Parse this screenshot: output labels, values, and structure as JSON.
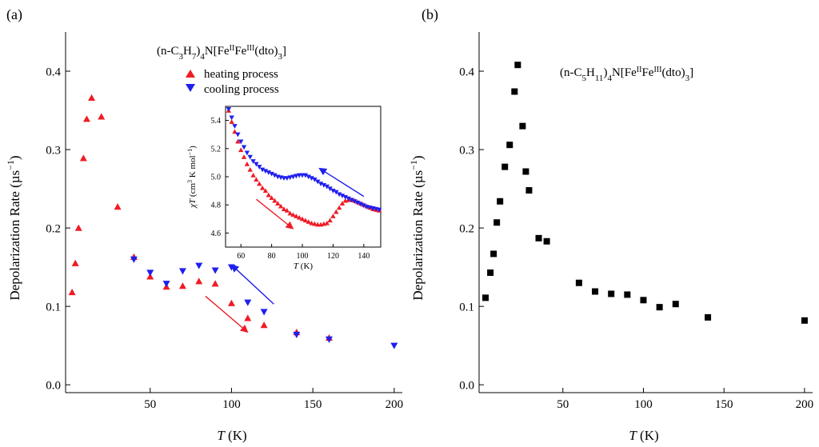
{
  "chart_data": [
    {
      "type": "scatter",
      "panel_label": "(a)",
      "title": "(n-C3H7)4N[FeIIFeIII(dto)3]",
      "title_parts": {
        "prefix": "(n-C",
        "sub1": "3",
        "mid1": "H",
        "sub2": "7",
        "mid2": ")",
        "sub3": "4",
        "mid3": "N[Fe",
        "sup1": "II",
        "mid4": "Fe",
        "sup2": "III",
        "mid5": "(dto)",
        "sub4": "3",
        "suffix": "]"
      },
      "xlabel": {
        "italic": "T",
        "rest": " (K)"
      },
      "ylabel": {
        "text": "Depolarization Rate (µs",
        "sup": "−1",
        "close": ")"
      },
      "xlim": [
        -2,
        205
      ],
      "ylim": [
        -0.01,
        0.45
      ],
      "xticks": [
        50,
        100,
        150,
        200
      ],
      "xtick_labels": [
        "50",
        "100",
        "150",
        "200"
      ],
      "yticks": [
        0.0,
        0.1,
        0.2,
        0.3,
        0.4
      ],
      "ytick_labels": [
        "0.0",
        "0.1",
        "0.2",
        "0.3",
        "0.4"
      ],
      "legend": [
        {
          "label": "heating process",
          "marker": "triangle-up",
          "color": "#ee1c24"
        },
        {
          "label": "cooling process",
          "marker": "triangle-down",
          "color": "#1f1fee"
        }
      ],
      "series": [
        {
          "name": "heating process",
          "marker": "triangle-up",
          "color": "#ee1c24",
          "x": [
            2,
            4,
            6,
            9,
            11,
            14,
            20,
            30,
            40,
            50,
            60,
            70,
            80,
            90,
            100,
            110,
            120,
            140,
            160
          ],
          "y": [
            0.118,
            0.155,
            0.2,
            0.289,
            0.339,
            0.366,
            0.342,
            0.227,
            0.163,
            0.138,
            0.125,
            0.126,
            0.132,
            0.129,
            0.104,
            0.085,
            0.076,
            0.067,
            0.06
          ]
        },
        {
          "name": "cooling process",
          "marker": "triangle-down",
          "color": "#1f1fee",
          "x": [
            40,
            50,
            60,
            70,
            80,
            90,
            100,
            110,
            120,
            140,
            160,
            200
          ],
          "y": [
            0.16,
            0.143,
            0.129,
            0.145,
            0.152,
            0.146,
            0.15,
            0.105,
            0.093,
            0.064,
            0.058,
            0.05
          ]
        }
      ],
      "annotations": [
        {
          "type": "arrow",
          "color": "#ee1c24",
          "from": [
            84,
            0.113
          ],
          "to": [
            110,
            0.067
          ]
        },
        {
          "type": "arrow",
          "color": "#1f1fee",
          "from": [
            126,
            0.103
          ],
          "to": [
            100,
            0.153
          ]
        }
      ],
      "inset": {
        "type": "scatter",
        "xlabel": {
          "italic": "T",
          "rest": " (K)"
        },
        "ylabel": {
          "italic": "χT",
          "rest": " (cm",
          "sup1": "3",
          "mid": " K mol",
          "sup2": "−1",
          "close": ")"
        },
        "xlim": [
          50,
          151
        ],
        "ylim": [
          4.5,
          5.5
        ],
        "xticks": [
          60,
          80,
          100,
          120,
          140
        ],
        "xtick_labels": [
          "60",
          "80",
          "100",
          "120",
          "140"
        ],
        "yticks": [
          4.6,
          4.8,
          5.0,
          5.2,
          5.4
        ],
        "ytick_labels": [
          "4.6",
          "4.8",
          "5.0",
          "5.2",
          "5.4"
        ],
        "series": [
          {
            "name": "heating",
            "marker": "triangle-up",
            "color": "#ee1c24",
            "x": [
              52,
              54,
              56,
              58,
              60,
              62,
              64,
              66,
              68,
              70,
              72,
              74,
              76,
              78,
              80,
              82,
              84,
              86,
              88,
              90,
              92,
              94,
              96,
              98,
              100,
              102,
              104,
              106,
              108,
              110,
              112,
              114,
              116,
              118,
              120,
              122,
              124,
              126,
              128,
              130,
              132,
              134,
              136,
              138,
              140,
              142,
              144,
              146,
              148,
              150
            ],
            "y": [
              5.47,
              5.39,
              5.32,
              5.25,
              5.19,
              5.14,
              5.09,
              5.05,
              5.01,
              4.98,
              4.95,
              4.92,
              4.9,
              4.87,
              4.85,
              4.83,
              4.81,
              4.79,
              4.77,
              4.76,
              4.74,
              4.73,
              4.72,
              4.71,
              4.7,
              4.69,
              4.68,
              4.67,
              4.665,
              4.66,
              4.66,
              4.665,
              4.67,
              4.69,
              4.72,
              4.75,
              4.78,
              4.81,
              4.83,
              4.835,
              4.835,
              4.83,
              4.82,
              4.81,
              4.8,
              4.79,
              4.78,
              4.77,
              4.765,
              4.76
            ]
          },
          {
            "name": "cooling",
            "marker": "triangle-down",
            "color": "#1f1fee",
            "x": [
              52,
              54,
              56,
              58,
              60,
              62,
              64,
              66,
              68,
              70,
              72,
              74,
              76,
              78,
              80,
              82,
              84,
              86,
              88,
              90,
              92,
              94,
              96,
              98,
              100,
              102,
              104,
              106,
              108,
              110,
              112,
              114,
              116,
              118,
              120,
              122,
              124,
              126,
              128,
              130,
              132,
              134,
              136,
              138,
              140,
              142,
              144,
              146,
              148,
              150
            ],
            "y": [
              5.48,
              5.42,
              5.36,
              5.3,
              5.25,
              5.21,
              5.17,
              5.14,
              5.11,
              5.09,
              5.07,
              5.05,
              5.04,
              5.03,
              5.02,
              5.01,
              5.0,
              4.995,
              4.99,
              4.99,
              4.995,
              5.0,
              5.005,
              5.01,
              5.01,
              5.01,
              5.0,
              4.99,
              4.98,
              4.965,
              4.95,
              4.94,
              4.93,
              4.915,
              4.9,
              4.89,
              4.875,
              4.865,
              4.855,
              4.845,
              4.835,
              4.825,
              4.815,
              4.805,
              4.795,
              4.785,
              4.78,
              4.775,
              4.77,
              4.765
            ]
          }
        ],
        "annotations": [
          {
            "type": "arrow",
            "color": "#ee1c24",
            "from": [
              70,
              4.84
            ],
            "to": [
              94,
              4.63
            ]
          },
          {
            "type": "arrow",
            "color": "#1f1fee",
            "from": [
              140,
              4.86
            ],
            "to": [
              111,
              5.06
            ]
          }
        ]
      }
    },
    {
      "type": "scatter",
      "panel_label": "(b)",
      "title": "(n-C5H11)4N[FeIIFeIII(dto)3]",
      "title_parts": {
        "prefix": "(n-C",
        "sub1": "5",
        "mid1": "H",
        "sub2": "11",
        "mid2": ")",
        "sub3": "4",
        "mid3": "N[Fe",
        "sup1": "II",
        "mid4": "Fe",
        "sup2": "III",
        "mid5": "(dto)",
        "sub4": "3",
        "suffix": "]"
      },
      "xlabel": {
        "italic": "T",
        "rest": " (K)"
      },
      "ylabel": {
        "text": "Depolarization Rate (µs",
        "sup": "−1",
        "close": ")"
      },
      "xlim": [
        -2,
        205
      ],
      "ylim": [
        -0.01,
        0.45
      ],
      "xticks": [
        50,
        100,
        150,
        200
      ],
      "xtick_labels": [
        "50",
        "100",
        "150",
        "200"
      ],
      "yticks": [
        0.0,
        0.1,
        0.2,
        0.3,
        0.4
      ],
      "ytick_labels": [
        "0.0",
        "0.1",
        "0.2",
        "0.3",
        "0.4"
      ],
      "series": [
        {
          "name": "data",
          "marker": "square",
          "color": "#000000",
          "x": [
            2,
            5,
            7,
            9,
            11,
            14,
            17,
            20,
            22,
            25,
            27,
            29,
            35,
            40,
            60,
            70,
            80,
            90,
            100,
            110,
            120,
            140,
            200
          ],
          "y": [
            0.111,
            0.143,
            0.167,
            0.207,
            0.234,
            0.278,
            0.306,
            0.374,
            0.408,
            0.33,
            0.272,
            0.248,
            0.187,
            0.183,
            0.13,
            0.119,
            0.116,
            0.115,
            0.108,
            0.099,
            0.103,
            0.086,
            0.082
          ]
        }
      ]
    }
  ]
}
